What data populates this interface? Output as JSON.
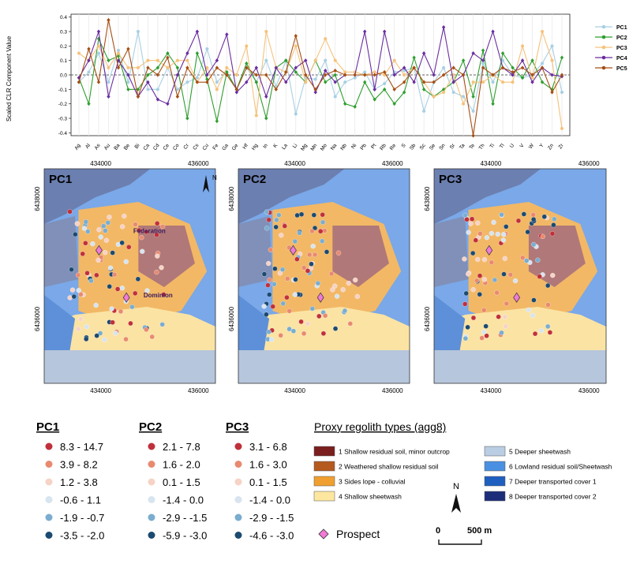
{
  "chart_data": [
    {
      "type": "line",
      "ylabel": "Scaled CLR Component Value",
      "ylim": [
        -0.42,
        0.42
      ],
      "yticks": [
        0.4,
        0.3,
        0.2,
        0.1,
        0.0,
        -0.1,
        -0.2,
        -0.3,
        -0.4
      ],
      "ytick_labels": [
        "0.4",
        "0.3",
        "0.2",
        "0.1",
        "0.0",
        "-0.1",
        "-0.2",
        "-0.3",
        "-0.4"
      ],
      "categories": [
        "Ag",
        "Al",
        "As",
        "Au",
        "Ba",
        "Be",
        "Bi",
        "Ca",
        "Cd",
        "Ce",
        "Co",
        "Cr",
        "Cs",
        "Cu",
        "Fe",
        "Ga",
        "Ge",
        "Hf",
        "Hg",
        "In",
        "K",
        "La",
        "Li",
        "Mg",
        "Mn",
        "Mo",
        "Na",
        "Nb",
        "Ni",
        "Pb",
        "Pt",
        "Rb",
        "Re",
        "S",
        "Sb",
        "Sc",
        "Se",
        "Sn",
        "Sr",
        "Ta",
        "Te",
        "Th",
        "Ti",
        "Tl",
        "U",
        "V",
        "W",
        "Y",
        "Zn",
        "Zr"
      ],
      "legend_position": "right",
      "series": [
        {
          "name": "PC1",
          "color": "#a8cfe3",
          "values": [
            -0.05,
            0.02,
            0.15,
            -0.05,
            0.17,
            -0.05,
            0.3,
            -0.1,
            -0.1,
            0.05,
            -0.1,
            -0.05,
            -0.02,
            0.18,
            -0.05,
            0.02,
            -0.1,
            0.05,
            -0.05,
            0.1,
            -0.08,
            0.1,
            -0.27,
            -0.02,
            -0.03,
            0.1,
            -0.15,
            -0.05,
            -0.02,
            0.02,
            -0.1,
            -0.06,
            0.02,
            0.03,
            0.05,
            -0.25,
            -0.05,
            0.05,
            -0.12,
            -0.15,
            -0.25,
            0.08,
            -0.05,
            0.1,
            0.0,
            -0.02,
            0.0,
            0.08,
            0.2,
            -0.12
          ]
        },
        {
          "name": "PC2",
          "color": "#2e9e2e",
          "values": [
            -0.02,
            -0.2,
            0.25,
            0.1,
            0.13,
            -0.1,
            -0.1,
            0.0,
            0.05,
            0.15,
            0.05,
            -0.3,
            0.15,
            -0.03,
            -0.32,
            0.02,
            -0.1,
            0.08,
            -0.05,
            -0.3,
            0.05,
            0.1,
            0.02,
            -0.05,
            0.1,
            -0.05,
            0.0,
            -0.2,
            -0.22,
            -0.05,
            -0.17,
            -0.1,
            -0.2,
            -0.12,
            0.12,
            -0.1,
            -0.15,
            -0.1,
            -0.05,
            0.1,
            -0.15,
            0.17,
            -0.2,
            0.15,
            0.05,
            -0.02,
            0.1,
            -0.05,
            -0.1,
            0.12
          ]
        },
        {
          "name": "PC3",
          "color": "#f5c27a",
          "values": [
            0.15,
            0.1,
            0.2,
            0.05,
            0.15,
            0.05,
            0.05,
            0.1,
            0.1,
            0.05,
            0.1,
            0.1,
            -0.05,
            0.05,
            -0.1,
            0.05,
            0.0,
            0.2,
            -0.28,
            0.3,
            0.05,
            0.02,
            0.2,
            -0.05,
            0.1,
            0.25,
            0.1,
            0.02,
            0.02,
            0.0,
            0.02,
            0.0,
            0.1,
            0.0,
            0.05,
            -0.05,
            -0.15,
            -0.12,
            0.0,
            -0.2,
            -0.05,
            -0.05,
            0.0,
            -0.05,
            -0.05,
            0.2,
            -0.02,
            0.3,
            0.1,
            -0.37
          ]
        },
        {
          "name": "PC4",
          "color": "#6a2ca0",
          "values": [
            -0.02,
            0.1,
            0.3,
            -0.15,
            0.1,
            0.0,
            -0.15,
            -0.05,
            -0.17,
            -0.2,
            0.0,
            0.15,
            0.3,
            0.0,
            0.1,
            0.28,
            -0.12,
            -0.05,
            0.05,
            -0.15,
            0.05,
            -0.05,
            0.05,
            0.1,
            -0.12,
            0.03,
            -0.05,
            0.0,
            0.0,
            0.3,
            -0.1,
            0.3,
            0.0,
            0.05,
            -0.05,
            0.15,
            0.0,
            0.33,
            -0.05,
            0.0,
            0.15,
            0.1,
            0.3,
            0.05,
            0.0,
            0.1,
            -0.05,
            0.05,
            0.0,
            -0.01
          ]
        },
        {
          "name": "PC5",
          "color": "#a64e13",
          "values": [
            -0.05,
            0.18,
            -0.05,
            0.38,
            0.05,
            0.18,
            -0.15,
            0.05,
            0.0,
            0.12,
            -0.15,
            0.05,
            -0.05,
            -0.05,
            0.05,
            0.0,
            -0.1,
            0.05,
            0.0,
            0.0,
            -0.1,
            0.02,
            0.27,
            0.0,
            -0.1,
            0.0,
            0.03,
            0.0,
            0.0,
            0.0,
            0.0,
            0.02,
            -0.1,
            -0.05,
            0.05,
            -0.05,
            -0.05,
            0.0,
            0.05,
            0.0,
            -0.42,
            0.05,
            0.0,
            0.05,
            0.02,
            0.05,
            0.0,
            0.05,
            -0.12,
            0.0
          ]
        }
      ]
    },
    {
      "type": "map",
      "panels": [
        "PC1",
        "PC2",
        "PC3"
      ],
      "xticks_top": [
        "434000",
        "436000"
      ],
      "xticks_bottom": [
        "434000",
        "436000"
      ],
      "yticks": [
        "6438000",
        "6436000"
      ],
      "annotations": [
        "Federation",
        "Dominion"
      ],
      "north_label": "N"
    }
  ],
  "legends": {
    "pc1": {
      "title": "PC1",
      "items": [
        "8.3 - 14.7",
        "3.9 - 8.2",
        "1.2 - 3.8",
        "-0.6 - 1.1",
        "-1.9 - -0.7",
        "-3.5 - -2.0"
      ]
    },
    "pc2": {
      "title": "PC2",
      "items": [
        "2.1 - 7.8",
        "1.6 - 2.0",
        "0.1 - 1.5",
        "-1.4 - 0.0",
        "-2.9 - -1.5",
        "-5.9 - -3.0"
      ]
    },
    "pc3": {
      "title": "PC3",
      "items": [
        "3.1 - 6.8",
        "1.6 - 3.0",
        "0.1 - 1.5",
        "-1.4 - 0.0",
        "-2.9 - -1.5",
        "-4.6 - -3.0"
      ]
    },
    "dot_colors": [
      "#c0303a",
      "#e88a70",
      "#f6d3c6",
      "#d8e4ef",
      "#7aadcf",
      "#1c4a70"
    ],
    "regolith": {
      "title": "Proxy regolith types (agg8)",
      "items": [
        {
          "label": "1 Shallow residual soil, minor outcrop",
          "color": "#7a1e1e"
        },
        {
          "label": "2 Weathered shallow residual soil",
          "color": "#b45a1e"
        },
        {
          "label": "3 Sides lope - colluvial",
          "color": "#f0a030"
        },
        {
          "label": "4 Shallow sheetwash",
          "color": "#fde7a0"
        },
        {
          "label": "5 Deeper sheetwash",
          "color": "#b9cde3"
        },
        {
          "label": "6 Lowland residual soil/Sheetwash",
          "color": "#4a90e2"
        },
        {
          "label": "7 Deeper transported cover 1",
          "color": "#1f5fbf"
        },
        {
          "label": "8 Deeper transported cover 2",
          "color": "#1c2e7a"
        }
      ]
    },
    "prospect_label": "Prospect",
    "scale_labels": [
      "0",
      "500 m"
    ],
    "north_label": "N"
  }
}
